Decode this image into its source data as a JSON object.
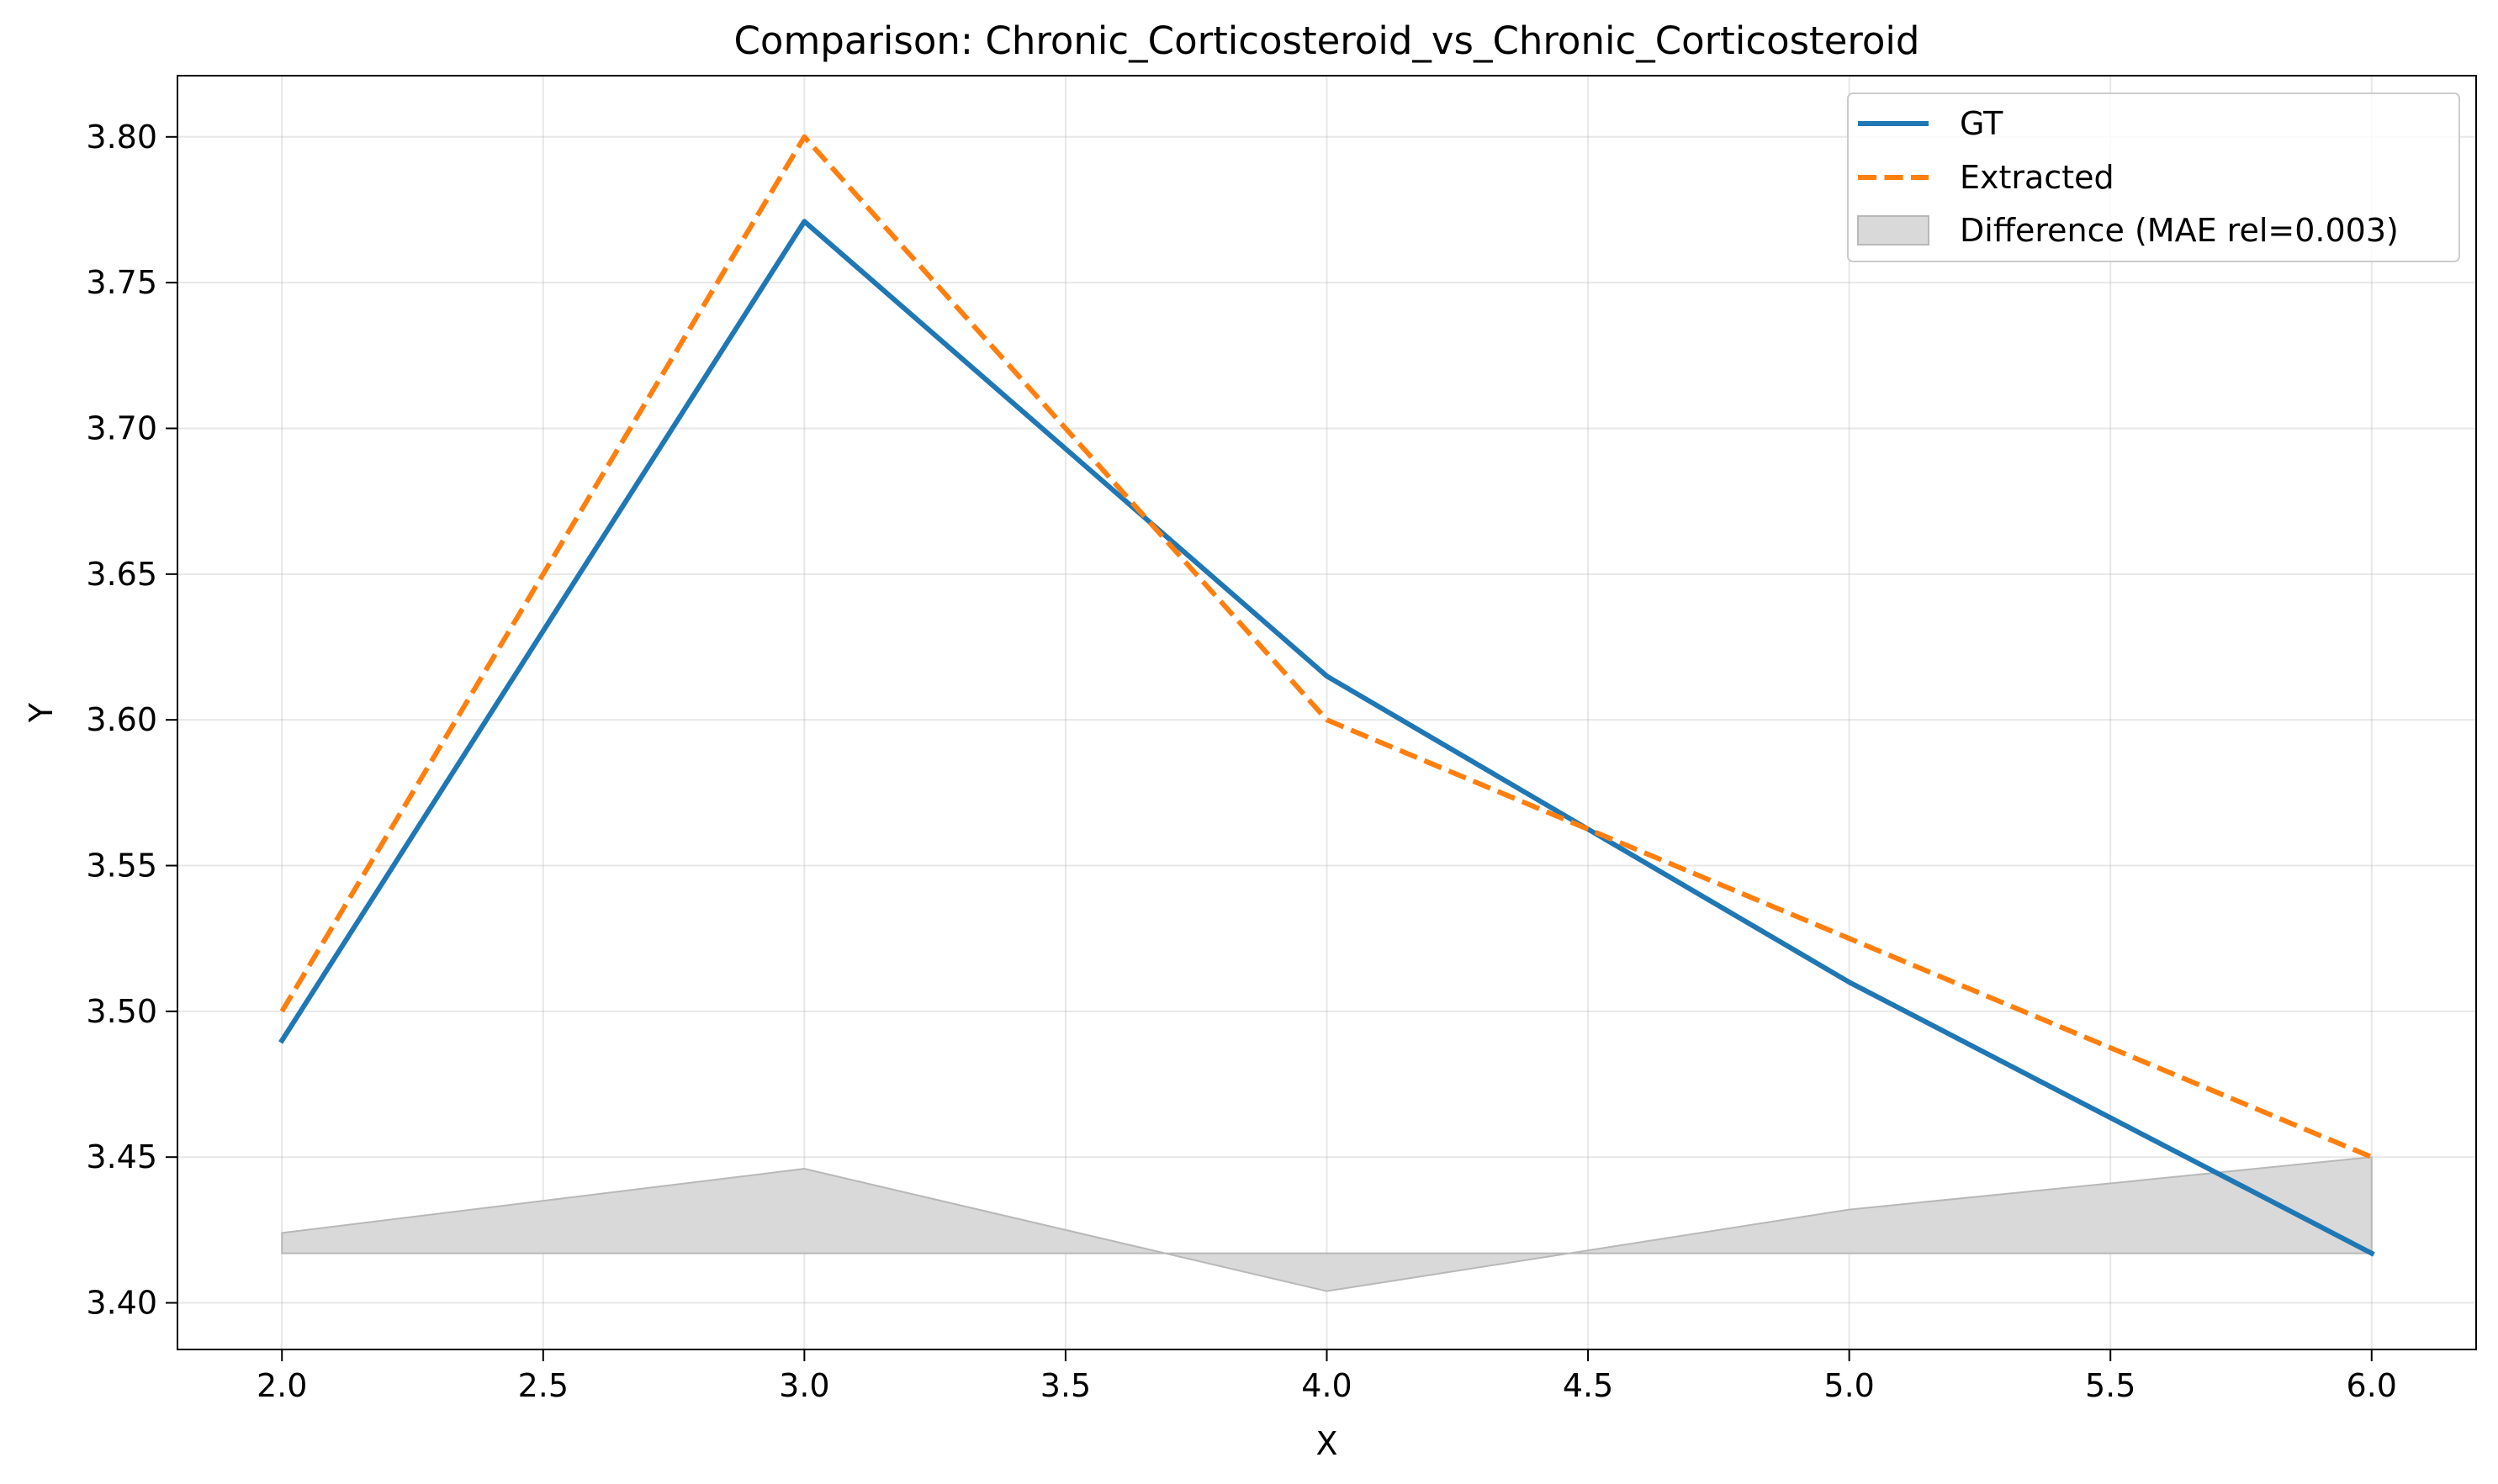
{
  "chart_data": {
    "type": "line",
    "title": "Comparison: Chronic_Corticosteroid_vs_Chronic_Corticosteroid",
    "xlabel": "X",
    "ylabel": "Y",
    "xlim": [
      1.8,
      6.2
    ],
    "ylim": [
      3.384,
      3.821
    ],
    "xticks": [
      2.0,
      2.5,
      3.0,
      3.5,
      4.0,
      4.5,
      5.0,
      5.5,
      6.0
    ],
    "xtick_labels": [
      "2.0",
      "2.5",
      "3.0",
      "3.5",
      "4.0",
      "4.5",
      "5.0",
      "5.5",
      "6.0"
    ],
    "yticks": [
      3.4,
      3.45,
      3.5,
      3.55,
      3.6,
      3.65,
      3.7,
      3.75,
      3.8
    ],
    "ytick_labels": [
      "3.40",
      "3.45",
      "3.50",
      "3.55",
      "3.60",
      "3.65",
      "3.70",
      "3.75",
      "3.80"
    ],
    "grid": true,
    "legend_position": "top-right",
    "x": [
      2,
      3,
      4,
      5,
      6
    ],
    "series": [
      {
        "name": "GT",
        "values": [
          3.49,
          3.771,
          3.615,
          3.51,
          3.417
        ],
        "color": "#1f77b4",
        "style": "solid"
      },
      {
        "name": "Extracted",
        "values": [
          3.5,
          3.8,
          3.6,
          3.525,
          3.45
        ],
        "color": "#ff7f0e",
        "style": "dashed"
      }
    ],
    "difference": {
      "name": "Difference (MAE rel=0.003)",
      "baseline": 3.417,
      "values": [
        3.424,
        3.446,
        3.404,
        3.432,
        3.45
      ],
      "color": "#d9d9d9"
    }
  }
}
